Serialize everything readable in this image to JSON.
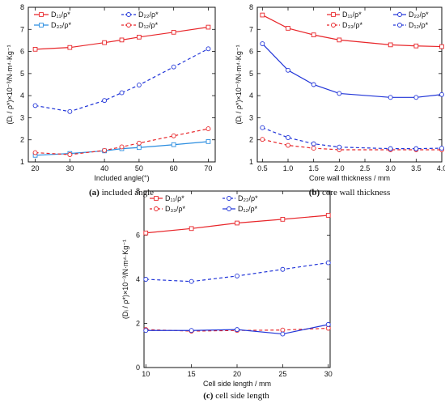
{
  "colors": {
    "red": "#e8262a",
    "blue": "#2034d8",
    "cyan": "#2a8de0"
  },
  "chart_data": [
    {
      "type": "line",
      "caption_tag": "(a)",
      "caption_text": "included angle",
      "xlabel": "Included angle(°)",
      "ylabel": "(Dᵢ / ρ*)×10⁻³/N·m⁴·Kg⁻¹",
      "xlim": [
        18,
        72
      ],
      "ylim": [
        1,
        8
      ],
      "xticks": [
        20,
        30,
        40,
        50,
        60,
        70
      ],
      "yticks": [
        1,
        2,
        3,
        4,
        5,
        6,
        7,
        8
      ],
      "x": [
        20,
        30,
        40,
        45,
        50,
        60,
        70
      ],
      "legend_position": "top",
      "series": [
        {
          "name": "D₁₁/ρ*",
          "color": "#e8262a",
          "dash": false,
          "marker": "square",
          "values": [
            6.1,
            6.18,
            6.4,
            6.52,
            6.65,
            6.87,
            7.1
          ]
        },
        {
          "name": "D₂₂/ρ*",
          "color": "#2034d8",
          "dash": true,
          "marker": "circle",
          "values": [
            3.55,
            3.28,
            3.78,
            4.13,
            4.48,
            5.3,
            6.12
          ]
        },
        {
          "name": "D₃₃/ρ*",
          "color": "#2a8de0",
          "dash": false,
          "marker": "square",
          "values": [
            1.3,
            1.38,
            1.5,
            1.6,
            1.65,
            1.78,
            1.92
          ]
        },
        {
          "name": "D₁₂/ρ*",
          "color": "#e8262a",
          "dash": true,
          "marker": "circle",
          "values": [
            1.42,
            1.33,
            1.52,
            1.68,
            1.85,
            2.18,
            2.5
          ]
        }
      ]
    },
    {
      "type": "line",
      "caption_tag": "(b)",
      "caption_text": "core wall thickness",
      "xlabel": "Core wall thickness / mm",
      "ylabel": "(Dᵢ / ρ*)×10⁻³/N·m⁴·Kg⁻¹",
      "xlim": [
        0.4,
        4.0
      ],
      "ylim": [
        1,
        8
      ],
      "xticks": [
        0.5,
        1.0,
        1.5,
        2.0,
        2.5,
        3.0,
        3.5,
        4.0
      ],
      "yticks": [
        1,
        2,
        3,
        4,
        5,
        6,
        7,
        8
      ],
      "x": [
        0.5,
        1.0,
        1.5,
        2.0,
        3.0,
        3.5,
        4.0
      ],
      "legend_position": "top-right",
      "series": [
        {
          "name": "D₁₁/ρ*",
          "color": "#e8262a",
          "dash": false,
          "marker": "square",
          "values": [
            7.65,
            7.05,
            6.75,
            6.52,
            6.3,
            6.25,
            6.22
          ]
        },
        {
          "name": "D₂₂/ρ*",
          "color": "#2034d8",
          "dash": false,
          "marker": "circle",
          "values": [
            6.35,
            5.15,
            4.5,
            4.1,
            3.92,
            3.92,
            4.05
          ]
        },
        {
          "name": "D₃₃/ρ*",
          "color": "#e8262a",
          "dash": true,
          "marker": "circle",
          "values": [
            2.02,
            1.75,
            1.62,
            1.55,
            1.55,
            1.55,
            1.55
          ]
        },
        {
          "name": "D₁₂/ρ*",
          "color": "#2034d8",
          "dash": true,
          "marker": "circle",
          "values": [
            2.55,
            2.1,
            1.82,
            1.67,
            1.6,
            1.6,
            1.62
          ]
        }
      ]
    },
    {
      "type": "line",
      "caption_tag": "(c)",
      "caption_text": "cell side length",
      "xlabel": "Cell side length / mm",
      "ylabel": "(Dᵢ / ρ*)×10⁻³/N·m⁴·Kg⁻¹",
      "xlim": [
        9.8,
        30.2
      ],
      "ylim": [
        0,
        8
      ],
      "xticks": [
        10,
        15,
        20,
        25,
        30
      ],
      "yticks": [
        0,
        2,
        4,
        6,
        8
      ],
      "x": [
        10,
        15,
        20,
        25,
        30
      ],
      "legend_position": "top",
      "series": [
        {
          "name": "D₁₁/ρ*",
          "color": "#e8262a",
          "dash": false,
          "marker": "square",
          "values": [
            6.1,
            6.3,
            6.55,
            6.72,
            6.9
          ]
        },
        {
          "name": "D₂₂/ρ*",
          "color": "#2034d8",
          "dash": true,
          "marker": "circle",
          "values": [
            4.0,
            3.9,
            4.15,
            4.45,
            4.75
          ]
        },
        {
          "name": "D₃₃/ρ*",
          "color": "#e8262a",
          "dash": true,
          "marker": "circle",
          "values": [
            1.72,
            1.65,
            1.68,
            1.7,
            1.78
          ]
        },
        {
          "name": "D₁₂/ρ*",
          "color": "#2034d8",
          "dash": false,
          "marker": "circle",
          "values": [
            1.68,
            1.68,
            1.72,
            1.52,
            1.95
          ]
        }
      ]
    }
  ]
}
